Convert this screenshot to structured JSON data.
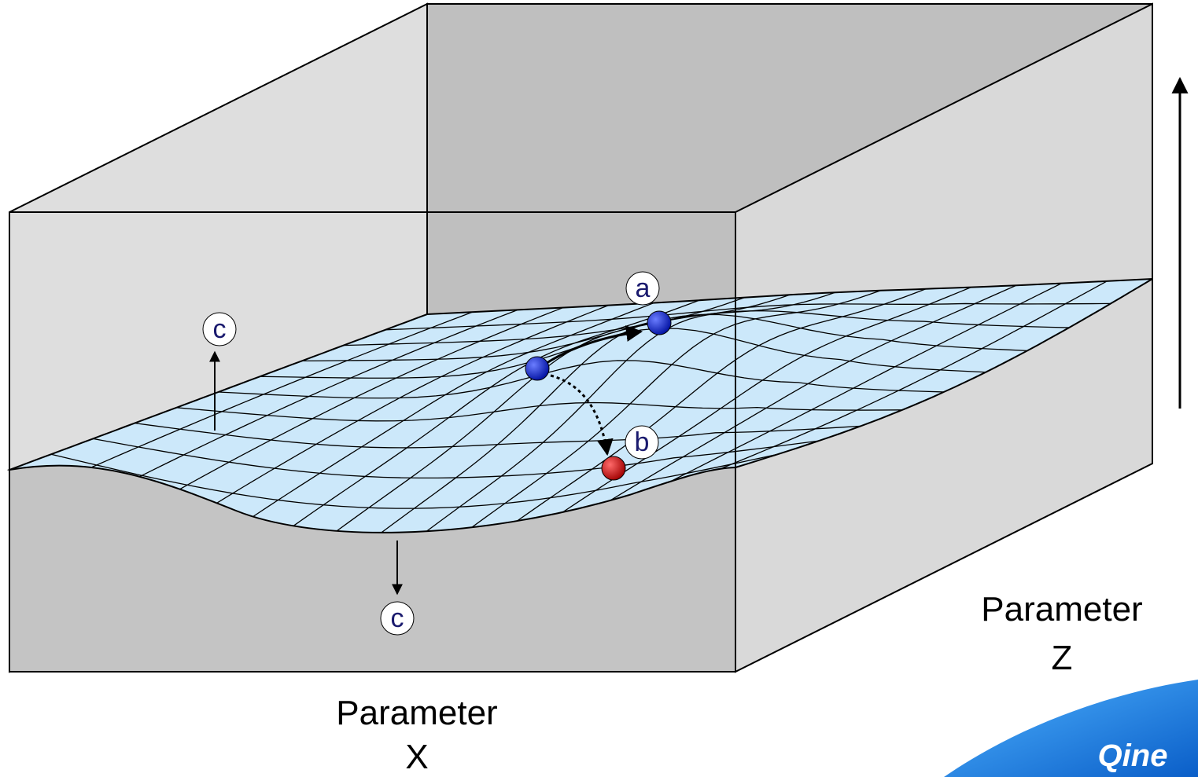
{
  "labels": {
    "a": "a",
    "b": "b",
    "c_top": "c",
    "c_bottom": "c"
  },
  "axes": {
    "x": [
      "Parameter",
      "X"
    ],
    "z": [
      "Parameter",
      "Z"
    ]
  },
  "logo": "Qine"
}
